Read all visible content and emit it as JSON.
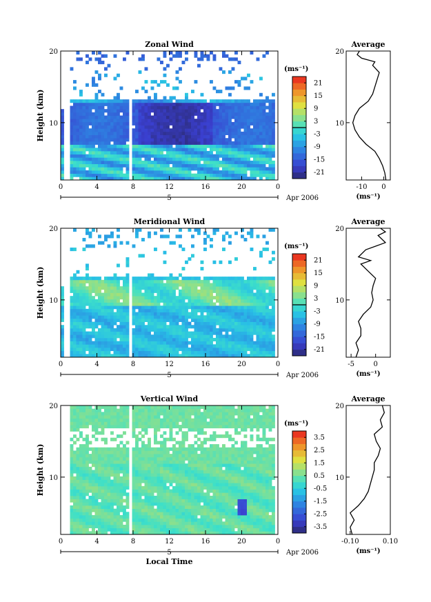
{
  "chart_data": [
    {
      "type": "heatmap",
      "title": "Zonal Wind",
      "ylabel": "Height (km)",
      "xticks": [
        "0",
        "4",
        "8",
        "12",
        "16",
        "20",
        "0"
      ],
      "yticks": [
        "20",
        "10"
      ],
      "ylim": [
        2,
        20
      ],
      "xlim": [
        0,
        24
      ],
      "date_tick": "5",
      "date_label": "Apr 2006",
      "colorbar": {
        "unit": "(ms⁻¹)",
        "ticks": [
          "21",
          "15",
          "9",
          "3",
          "-3",
          "-9",
          "-15",
          "-21"
        ],
        "range": [
          -24,
          24
        ],
        "marker": 0
      },
      "average": {
        "title": "Average",
        "xticks": [
          "-10",
          "0"
        ],
        "xlim": [
          -17,
          3
        ],
        "xunit": "(ms⁻¹)",
        "yticks": [
          "20",
          "10"
        ],
        "profile": [
          [
            2,
            1
          ],
          [
            3,
            0.5
          ],
          [
            4,
            -0.5
          ],
          [
            5,
            -2
          ],
          [
            6,
            -4
          ],
          [
            7,
            -8
          ],
          [
            8,
            -11
          ],
          [
            9,
            -13
          ],
          [
            10,
            -14
          ],
          [
            11,
            -13
          ],
          [
            12,
            -11
          ],
          [
            13,
            -7
          ],
          [
            14,
            -5
          ],
          [
            15,
            -4
          ],
          [
            16,
            -3
          ],
          [
            17,
            -2
          ],
          [
            18,
            -5
          ],
          [
            18.5,
            -4
          ],
          [
            19,
            -10
          ],
          [
            19.5,
            -12
          ],
          [
            20,
            -11
          ]
        ]
      }
    },
    {
      "type": "heatmap",
      "title": "Meridional Wind",
      "ylabel": "Height (km)",
      "xticks": [
        "0",
        "4",
        "8",
        "12",
        "16",
        "20",
        "0"
      ],
      "yticks": [
        "20",
        "10"
      ],
      "ylim": [
        2,
        20
      ],
      "xlim": [
        0,
        24
      ],
      "date_tick": "5",
      "date_label": "Apr 2006",
      "colorbar": {
        "unit": "(ms⁻¹)",
        "ticks": [
          "21",
          "15",
          "9",
          "3",
          "-3",
          "-9",
          "-15",
          "-21"
        ],
        "range": [
          -24,
          24
        ],
        "marker": 0
      },
      "average": {
        "title": "Average",
        "xticks": [
          "-5",
          "0"
        ],
        "xlim": [
          -6,
          3
        ],
        "xunit": "(ms⁻¹)",
        "yticks": [
          "20",
          "10"
        ],
        "profile": [
          [
            2,
            -4
          ],
          [
            3,
            -3.5
          ],
          [
            4,
            -4
          ],
          [
            5,
            -3
          ],
          [
            6,
            -3
          ],
          [
            7,
            -3.5
          ],
          [
            8,
            -2.5
          ],
          [
            9,
            -1
          ],
          [
            10,
            -0.5
          ],
          [
            11,
            -0.8
          ],
          [
            12,
            -0.5
          ],
          [
            13,
            0
          ],
          [
            14,
            -1.5
          ],
          [
            15,
            -3
          ],
          [
            15.5,
            -1
          ],
          [
            16,
            -3.5
          ],
          [
            17,
            -2
          ],
          [
            17.5,
            0
          ],
          [
            18,
            2
          ],
          [
            19,
            0.5
          ],
          [
            19.5,
            2
          ],
          [
            20,
            1
          ]
        ]
      }
    },
    {
      "type": "heatmap",
      "title": "Vertical Wind",
      "ylabel": "Height (km)",
      "xlabel": "Local Time",
      "xticks": [
        "0",
        "4",
        "8",
        "12",
        "16",
        "20",
        "0"
      ],
      "yticks": [
        "20",
        "10"
      ],
      "ylim": [
        2,
        20
      ],
      "xlim": [
        0,
        24
      ],
      "date_tick": "5",
      "date_label": "Apr 2006",
      "colorbar": {
        "unit": "(ms⁻¹)",
        "ticks": [
          "3.5",
          "2.5",
          "1.5",
          "0.5",
          "-0.5",
          "-1.5",
          "-2.5",
          "-3.5"
        ],
        "range": [
          -4,
          4
        ],
        "marker": null
      },
      "average": {
        "title": "Average",
        "xticks": [
          "-0.10",
          "0.10"
        ],
        "xlim": [
          -0.12,
          0.1
        ],
        "xunit": "(ms⁻¹)",
        "yticks": [
          "20",
          "10"
        ],
        "profile": [
          [
            2,
            -0.09
          ],
          [
            3,
            -0.1
          ],
          [
            4,
            -0.08
          ],
          [
            5,
            -0.1
          ],
          [
            6,
            -0.06
          ],
          [
            7,
            -0.03
          ],
          [
            8,
            -0.01
          ],
          [
            9,
            0
          ],
          [
            10,
            0.01
          ],
          [
            11,
            0.02
          ],
          [
            12,
            0.02
          ],
          [
            13,
            0.04
          ],
          [
            14,
            0.05
          ],
          [
            15,
            0.03
          ],
          [
            16,
            0.02
          ],
          [
            17,
            0.06
          ],
          [
            18,
            0.05
          ],
          [
            19,
            0.07
          ],
          [
            20,
            0.06
          ]
        ]
      }
    }
  ]
}
